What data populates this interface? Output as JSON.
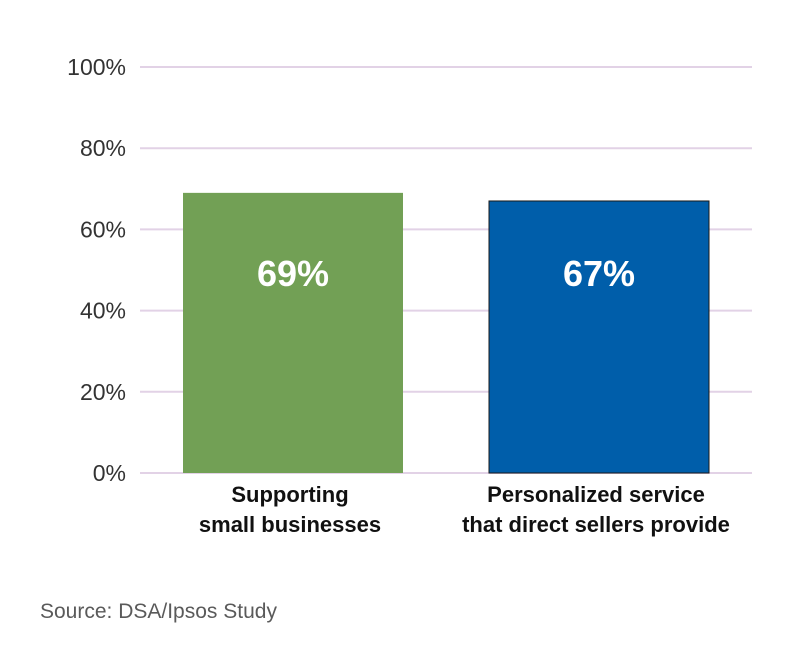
{
  "chart_data": {
    "type": "bar",
    "title": "",
    "xlabel": "",
    "ylabel": "",
    "ylim": [
      0,
      100
    ],
    "yticks": [
      "0%",
      "20%",
      "40%",
      "60%",
      "80%",
      "100%"
    ],
    "ytick_values": [
      0,
      20,
      40,
      60,
      80,
      100
    ],
    "grid": true,
    "categories": [
      [
        "Supporting",
        "small businesses"
      ],
      [
        "Personalized service",
        "that direct sellers provide"
      ]
    ],
    "values": [
      69,
      67
    ],
    "value_labels": [
      "69%",
      "67%"
    ],
    "colors": [
      "#72a055",
      "#005eaa"
    ],
    "grid_color": "#e2d2e6"
  },
  "source": "Source: DSA/Ipsos Study"
}
